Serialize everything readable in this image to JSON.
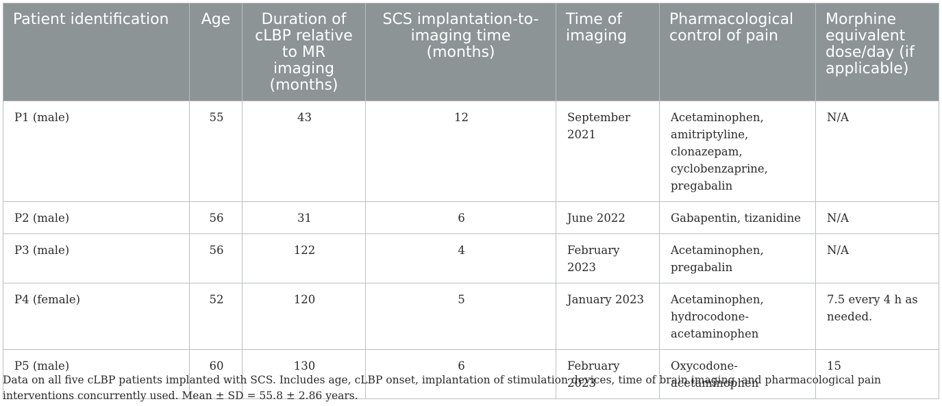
{
  "table": {
    "headers": [
      "Patient identification",
      "Age",
      "Duration of cLBP relative to MR imaging (months)",
      "SCS implantation-to-imaging time (months)",
      "Time of imaging",
      "Pharmacological control of pain",
      "Morphine equivalent dose/day (if applicable)"
    ],
    "rows": [
      [
        "P1 (male)",
        "55",
        "43",
        "12",
        "September 2021",
        "Acetaminophen, amitriptyline, clonazepam, cyclobenzaprine, pregabalin",
        "N/A"
      ],
      [
        "P2 (male)",
        "56",
        "31",
        "6",
        "June 2022",
        "Gabapentin, tizanidine",
        "N/A"
      ],
      [
        "P3 (male)",
        "56",
        "122",
        "4",
        "February 2023",
        "Acetaminophen, pregabalin",
        "N/A"
      ],
      [
        "P4 (female)",
        "52",
        "120",
        "5",
        "January 2023",
        "Acetaminophen, hydrocodone-acetaminophen",
        "7.5 every 4 h as needed."
      ],
      [
        "P5 (male)",
        "60",
        "130",
        "6",
        "February 2023",
        "Oxycodone-acetaminophen",
        "15"
      ]
    ]
  },
  "footnote": "Data on all five cLBP patients implanted with SCS. Includes age, cLBP onset, implantation of stimulation devices, time of brain imaging, and pharmacological pain interventions concurrently used. Mean ± SD = 55.8 ± 2.86 years."
}
